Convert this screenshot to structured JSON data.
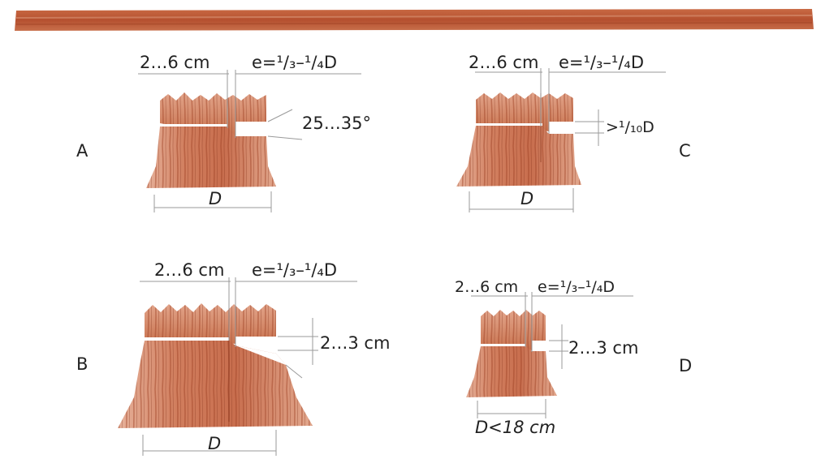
{
  "panels": [
    {
      "id": "A",
      "letter": "A",
      "left_dim": "2…6 cm",
      "right_dim": "e=¹/₃–¹/₄D",
      "side_dim": "25…35°",
      "bottom_dim": "D"
    },
    {
      "id": "B",
      "letter": "B",
      "left_dim": "2…6 cm",
      "right_dim": "e=¹/₃–¹/₄D",
      "side_dim": "2…3 cm",
      "bottom_dim": "D"
    },
    {
      "id": "C",
      "letter": "C",
      "left_dim": "2…6 cm",
      "right_dim": "e=¹/₃–¹/₄D",
      "side_dim": ">¹/₁₀D",
      "bottom_dim": "D"
    },
    {
      "id": "D",
      "letter": "D",
      "left_dim": "2…6 cm",
      "right_dim": "e=¹/₃–¹/₄D",
      "side_dim": "2…3 cm",
      "bottom_dim": "D<18 cm"
    }
  ],
  "colors": {
    "bark": "#b5502f",
    "wood_light": "#e8b29b",
    "wood_mid": "#d48666",
    "wood_dark": "#9c3f22",
    "dimension_lines": "#9a9a9a"
  }
}
